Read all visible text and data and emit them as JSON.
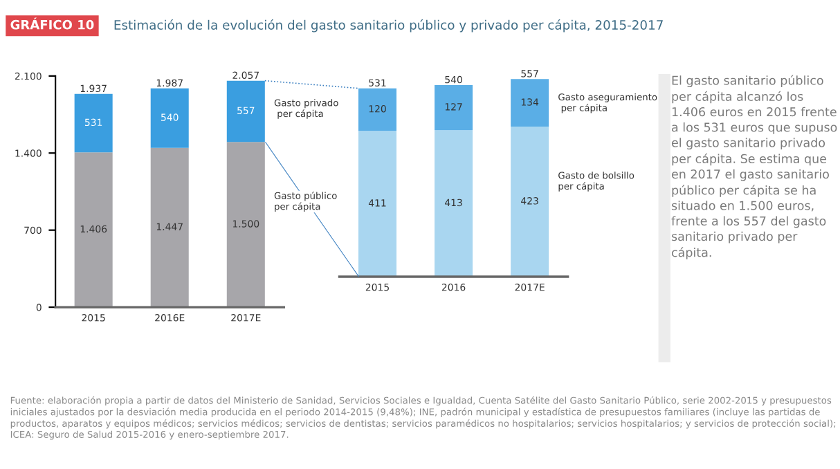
{
  "chart_data": [
    {
      "type": "bar",
      "stacked": true,
      "title": "GRÁFICO 10",
      "subtitle": "Estimación de la evolución del gasto sanitario público y privado per cápita, 2015-2017",
      "categories": [
        "2015",
        "2016E",
        "2017E"
      ],
      "series": [
        {
          "name": "Gasto público\nper cápita",
          "color": "#a7a6aa",
          "values": [
            1406,
            1447,
            1500
          ],
          "value_labels": [
            "1.406",
            "1.447",
            "1.500"
          ]
        },
        {
          "name": "Gasto privado\n per cápita",
          "color": "#3a9ee0",
          "values": [
            531,
            540,
            557
          ],
          "value_labels": [
            "531",
            "540",
            "557"
          ]
        }
      ],
      "totals": [
        "1.937",
        "1.987",
        "2.057"
      ],
      "ylim": [
        0,
        2100
      ],
      "yticks": [
        0,
        {
          "value": 700,
          "label": "700"
        },
        {
          "value": 1400,
          "label": "1.400"
        },
        {
          "value": 2100,
          "label": "2.100"
        }
      ],
      "grid": false,
      "legend": false,
      "annotations": [
        "Fuente: elaboración propia a partir de datos del Ministerio de Sanidad, Servicios Sociales e Igualdad, Cuenta Satélite del Gasto Sanitario Público, serie 2002-2015 y presupuestos iniciales ajustados por la desviación media producida en el periodo 2014-2015 (9,48%); INE, padrón municipal y estadística de presupuestos familiares (incluye las partidas de productos, aparatos y equipos médicos; servicios médicos; servicios de dentistas; servicios paramédicos no hospitalarios; servicios hospitalarios; y servicios de protección social); ICEA: Seguro de Salud 2015-2016 y enero-septiembre 2017."
      ]
    },
    {
      "type": "bar",
      "stacked": true,
      "categories": [
        "2015",
        "2016",
        "2017E"
      ],
      "series": [
        {
          "name": "Gasto de bolsillo\nper cápita",
          "color": "#a9d6f0",
          "values": [
            411,
            413,
            423
          ],
          "value_labels": [
            "411",
            "413",
            "423"
          ]
        },
        {
          "name": "Gasto aseguramiento\n per cápita",
          "color": "#5aaee6",
          "values": [
            120,
            127,
            134
          ],
          "value_labels": [
            "120",
            "127",
            "134"
          ]
        }
      ],
      "totals": [
        "531",
        "540",
        "557"
      ],
      "tick_labels": "x",
      "grid": false,
      "legend": false
    },
    {
      "type": "other",
      "annotations": [
        "El gasto sanitario público per cápita alcanzó los 1.406 euros en 2015 frente a los 531 euros que supuso el gasto sanitario privado per cápita. Se estima que en 2017 el gasto sanitario público per cápita se ha situado en 1.500 euros, frente a los 557 del gasto sanitario privado per cápita."
      ]
    }
  ]
}
